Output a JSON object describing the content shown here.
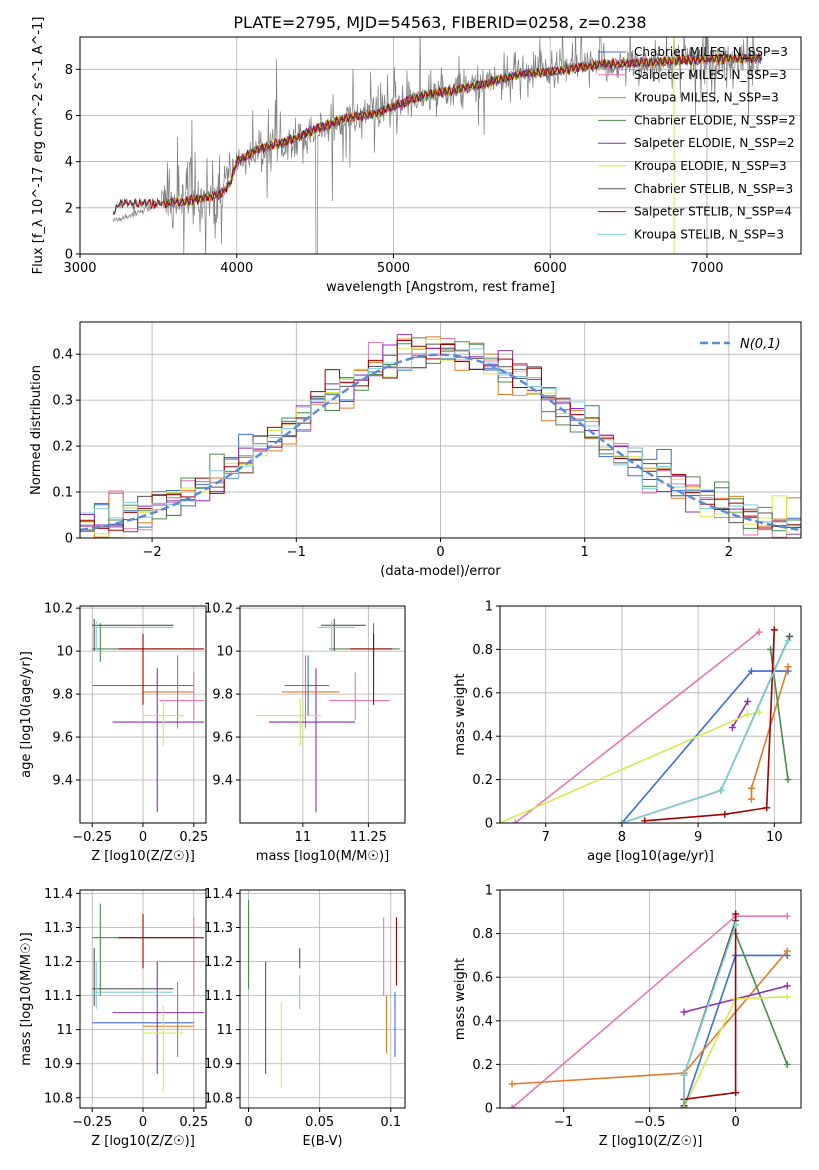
{
  "title": "PLATE=2795, MJD=54563, FIBERID=0258, z=0.238",
  "colors": {
    "chabrier_miles": "#3b6fd4",
    "salpeter_miles": "#e477b7",
    "kroupa_miles": "#e07b2a",
    "chabrier_elodie": "#4a8c4a",
    "salpeter_elodie": "#8c2fb5",
    "kroupa_elodie": "#d8e84f",
    "chabrier_stelib": "#555555",
    "salpeter_stelib": "#a00000",
    "kroupa_stelib": "#7fd0d8",
    "observed": "#7f7f7f",
    "normal": "#5a8ad6"
  },
  "chart_data": [
    {
      "id": "spectrum",
      "type": "line",
      "xlabel": "wavelength [Angstrom, rest frame]",
      "ylabel": "Flux [f_λ 10^-17 erg cm^-2 s^-1 A^-1]",
      "xlim": [
        3000,
        7600
      ],
      "ylim": [
        0,
        9.4
      ],
      "xticks": [
        3000,
        4000,
        5000,
        6000,
        7000
      ],
      "yticks": [
        0,
        2,
        4,
        6,
        8
      ],
      "legend_position": "top-right",
      "legend": [
        {
          "label": "Chabrier MILES, N_SSP=3",
          "color_key": "chabrier_miles"
        },
        {
          "label": "Salpeter MILES, N_SSP=3",
          "color_key": "salpeter_miles"
        },
        {
          "label": "Kroupa MILES, N_SSP=3",
          "color_key": "kroupa_miles"
        },
        {
          "label": "Chabrier ELODIE, N_SSP=2",
          "color_key": "chabrier_elodie"
        },
        {
          "label": "Salpeter ELODIE, N_SSP=2",
          "color_key": "salpeter_elodie"
        },
        {
          "label": "Kroupa ELODIE, N_SSP=3",
          "color_key": "kroupa_elodie"
        },
        {
          "label": "Chabrier STELIB, N_SSP=3",
          "color_key": "chabrier_stelib"
        },
        {
          "label": "Salpeter STELIB, N_SSP=4",
          "color_key": "salpeter_stelib"
        },
        {
          "label": "Kroupa STELIB, N_SSP=3",
          "color_key": "kroupa_stelib"
        }
      ],
      "model_anchors": [
        [
          3200,
          1.6
        ],
        [
          3250,
          2.2
        ],
        [
          3500,
          2.2
        ],
        [
          3550,
          2.2
        ],
        [
          3700,
          2.3
        ],
        [
          3900,
          2.6
        ],
        [
          3960,
          3.1
        ],
        [
          4000,
          4.0
        ],
        [
          4150,
          4.6
        ],
        [
          4300,
          4.8
        ],
        [
          4500,
          5.4
        ],
        [
          4700,
          5.9
        ],
        [
          4900,
          6.1
        ],
        [
          5000,
          6.4
        ],
        [
          5200,
          6.9
        ],
        [
          5400,
          7.1
        ],
        [
          5600,
          7.4
        ],
        [
          5800,
          7.8
        ],
        [
          6000,
          7.9
        ],
        [
          6300,
          8.2
        ],
        [
          6600,
          8.3
        ],
        [
          7000,
          8.45
        ],
        [
          7400,
          8.5
        ]
      ],
      "observed_anchors": [
        [
          3200,
          1.4
        ],
        [
          3520,
          2.2
        ],
        [
          3700,
          2.3
        ],
        [
          3900,
          2.6
        ],
        [
          4000,
          4.0
        ],
        [
          4300,
          4.8
        ],
        [
          4700,
          5.9
        ],
        [
          5000,
          6.4
        ],
        [
          5400,
          7.1
        ],
        [
          5800,
          7.8
        ],
        [
          6200,
          8.1
        ],
        [
          6600,
          8.3
        ],
        [
          7000,
          8.4
        ],
        [
          7300,
          8.3
        ]
      ]
    },
    {
      "id": "residuals",
      "type": "histogram",
      "xlabel": "(data-model)/error",
      "ylabel": "Normed distribution",
      "xlim": [
        -2.5,
        2.5
      ],
      "ylim": [
        0,
        0.47
      ],
      "xticks": [
        -2,
        -1,
        0,
        1,
        2
      ],
      "yticks": [
        0,
        0.1,
        0.2,
        0.3,
        0.4
      ],
      "legend_position": "top-right",
      "legend": [
        {
          "label": "N(0,1)",
          "color_key": "normal"
        }
      ],
      "bin_width": 0.1,
      "reference": "normal distribution, mean 0, sigma 1"
    },
    {
      "id": "age_vs_z",
      "type": "errorbar",
      "xlabel": "Z [log10(Z/Z☉)]",
      "ylabel": "age  [log10(age/yr)]",
      "xlim": [
        -0.31,
        0.31
      ],
      "ylim": [
        9.2,
        10.21
      ],
      "xticks": [
        -0.25,
        0.0,
        0.25
      ],
      "yticks": [
        9.4,
        9.6,
        9.8,
        10.0,
        10.2
      ]
    },
    {
      "id": "age_vs_mass",
      "type": "errorbar",
      "xlabel": "mass [log10(M/M☉)]",
      "ylabel": "",
      "xlim": [
        10.76,
        11.39
      ],
      "ylim": [
        9.2,
        10.21
      ],
      "xticks": [
        11.0,
        11.25
      ],
      "yticks": [
        9.4,
        9.6,
        9.8,
        10.0,
        10.2
      ]
    },
    {
      "id": "weight_vs_age",
      "type": "line",
      "xlabel": "age  [log10(age/yr)]",
      "ylabel": "mass weight",
      "xlim": [
        6.4,
        10.35
      ],
      "ylim": [
        0,
        1.0
      ],
      "xticks": [
        7,
        8,
        9,
        10
      ],
      "yticks": [
        0,
        0.2,
        0.4,
        0.6,
        0.8,
        1.0
      ]
    },
    {
      "id": "mass_vs_z",
      "type": "errorbar",
      "xlabel": "Z [log10(Z/Z☉)]",
      "ylabel": "mass [log10(M/M☉)]",
      "xlim": [
        -0.31,
        0.31
      ],
      "ylim": [
        10.77,
        11.41
      ],
      "xticks": [
        -0.25,
        0.0,
        0.25
      ],
      "yticks": [
        10.8,
        10.9,
        11.0,
        11.1,
        11.2,
        11.3,
        11.4
      ]
    },
    {
      "id": "mass_vs_ebv",
      "type": "errorbar",
      "xlabel": "E(B-V)",
      "ylabel": "",
      "xlim": [
        -0.006,
        0.11
      ],
      "ylim": [
        10.77,
        11.41
      ],
      "xticks": [
        0.0,
        0.05,
        0.1
      ],
      "yticks": [
        10.8,
        10.9,
        11.0,
        11.1,
        11.2,
        11.3,
        11.4
      ]
    },
    {
      "id": "weight_vs_z",
      "type": "line",
      "xlabel": "Z [log10(Z/Z☉)]",
      "ylabel": "mass weight",
      "xlim": [
        -1.37,
        0.38
      ],
      "ylim": [
        0,
        1.0
      ],
      "xticks": [
        -1.0,
        -0.5,
        0.0
      ],
      "yticks": [
        0,
        0.2,
        0.4,
        0.6,
        0.8,
        1.0
      ]
    }
  ],
  "fits": [
    {
      "name": "Chabrier MILES",
      "color_key": "chabrier_miles",
      "z": 0.17,
      "z_lo": -0.25,
      "z_hi": 0.25,
      "age": 9.84,
      "age_lo": 9.7,
      "age_hi": 9.98,
      "mass": 11.02,
      "mass_lo": 10.93,
      "mass_hi": 11.1,
      "ebv": 0.103,
      "ebv_lo": 10.92,
      "ebv_hi": 11.11
    },
    {
      "name": "Salpeter MILES",
      "color_key": "salpeter_miles",
      "z": 0.25,
      "z_lo": 0.08,
      "z_hi": 0.3,
      "age": 9.77,
      "age_lo": 9.68,
      "age_hi": 9.9,
      "mass": 11.2,
      "mass_lo": 11.1,
      "mass_hi": 11.33,
      "ebv": 0.095,
      "ebv_lo": 11.1,
      "ebv_hi": 11.33
    },
    {
      "name": "Kroupa MILES",
      "color_key": "kroupa_miles",
      "z": 0.17,
      "z_lo": 0.0,
      "z_hi": 0.25,
      "age": 9.81,
      "age_lo": 9.64,
      "age_hi": 9.98,
      "mass": 11.01,
      "mass_lo": 10.92,
      "mass_hi": 11.14,
      "ebv": 0.097,
      "ebv_lo": 10.93,
      "ebv_hi": 11.1
    },
    {
      "name": "Chabrier ELODIE",
      "color_key": "chabrier_elodie",
      "z": -0.21,
      "z_lo": -0.25,
      "z_hi": 0.25,
      "age": 10.01,
      "age_lo": 9.95,
      "age_hi": 10.13,
      "mass": 11.27,
      "mass_lo": 11.1,
      "mass_hi": 11.37,
      "ebv": 0.0,
      "ebv_lo": 11.12,
      "ebv_hi": 11.38
    },
    {
      "name": "Salpeter ELODIE",
      "color_key": "salpeter_elodie",
      "z": 0.07,
      "z_lo": -0.15,
      "z_hi": 0.3,
      "age": 9.67,
      "age_lo": 9.25,
      "age_hi": 9.92,
      "mass": 11.05,
      "mass_lo": 10.87,
      "mass_hi": 11.2,
      "ebv": 0.012,
      "ebv_lo": 10.87,
      "ebv_hi": 11.2
    },
    {
      "name": "Kroupa ELODIE",
      "color_key": "kroupa_elodie",
      "z": 0.1,
      "z_lo": 0.0,
      "z_hi": 0.2,
      "age": 9.7,
      "age_lo": 9.56,
      "age_hi": 9.78,
      "mass": 10.99,
      "mass_lo": 10.82,
      "mass_hi": 11.07,
      "ebv": 0.023,
      "ebv_lo": 10.83,
      "ebv_hi": 11.08
    },
    {
      "name": "Chabrier STELIB",
      "color_key": "chabrier_stelib",
      "z": -0.24,
      "z_lo": -0.25,
      "z_hi": 0.15,
      "age": 10.12,
      "age_lo": 10.0,
      "age_hi": 10.15,
      "mass": 11.12,
      "mass_lo": 11.07,
      "mass_hi": 11.24,
      "ebv": 0.036,
      "ebv_lo": 11.18,
      "ebv_hi": 11.24
    },
    {
      "name": "Salpeter STELIB",
      "color_key": "salpeter_stelib",
      "z": 0.0,
      "z_lo": -0.12,
      "z_hi": 0.3,
      "age": 10.01,
      "age_lo": 9.75,
      "age_hi": 10.08,
      "mass": 11.27,
      "mass_lo": 11.18,
      "mass_hi": 11.34,
      "ebv": 0.104,
      "ebv_lo": 11.13,
      "ebv_hi": 11.33
    },
    {
      "name": "Kroupa STELIB",
      "color_key": "kroupa_stelib",
      "z": -0.23,
      "z_lo": -0.25,
      "z_hi": 0.15,
      "age": 10.11,
      "age_lo": 10.0,
      "age_hi": 10.14,
      "mass": 11.11,
      "mass_lo": 11.06,
      "mass_hi": 11.2,
      "ebv": 0.036,
      "ebv_lo": 11.06,
      "ebv_hi": 11.16
    }
  ],
  "ssp_components": [
    {
      "color_key": "chabrier_miles",
      "age": [
        8.0,
        9.7,
        10.18
      ],
      "z": [
        -0.3,
        0.0,
        0.3
      ],
      "weight": [
        0.0,
        0.7,
        0.7
      ]
    },
    {
      "color_key": "salpeter_miles",
      "age": [
        6.6,
        9.8,
        9.8
      ],
      "z": [
        -1.3,
        0.0,
        0.3
      ],
      "weight": [
        0.0,
        0.88,
        0.88
      ]
    },
    {
      "color_key": "kroupa_miles",
      "age": [
        9.7,
        9.7,
        10.18
      ],
      "z": [
        -1.3,
        -0.3,
        0.3
      ],
      "weight": [
        0.11,
        0.16,
        0.72
      ]
    },
    {
      "color_key": "chabrier_elodie",
      "age": [
        9.95,
        10.18
      ],
      "z": [
        0.0,
        0.3
      ],
      "weight": [
        0.8,
        0.2
      ]
    },
    {
      "color_key": "salpeter_elodie",
      "age": [
        9.45,
        9.65
      ],
      "z": [
        -0.3,
        0.3
      ],
      "weight": [
        0.44,
        0.56
      ]
    },
    {
      "color_key": "kroupa_elodie",
      "age": [
        6.4,
        9.65,
        9.8
      ],
      "z": [
        -0.3,
        0.0,
        0.3
      ],
      "weight": [
        0.0,
        0.5,
        0.51
      ]
    },
    {
      "color_key": "chabrier_stelib",
      "age": [
        8.0,
        9.3,
        10.2
      ],
      "z": [
        -0.3,
        -0.3,
        0.0
      ],
      "weight": [
        0.0,
        0.15,
        0.86
      ]
    },
    {
      "color_key": "salpeter_stelib",
      "age": [
        8.3,
        9.35,
        9.9,
        10.0
      ],
      "z": [
        -0.3,
        -0.3,
        0.0,
        0.0
      ],
      "weight": [
        0.01,
        0.04,
        0.07,
        0.89
      ]
    },
    {
      "color_key": "kroupa_stelib",
      "age": [
        8.0,
        9.3,
        10.18
      ],
      "z": [
        -0.3,
        -0.3,
        0.0
      ],
      "weight": [
        0.0,
        0.15,
        0.84
      ]
    }
  ]
}
